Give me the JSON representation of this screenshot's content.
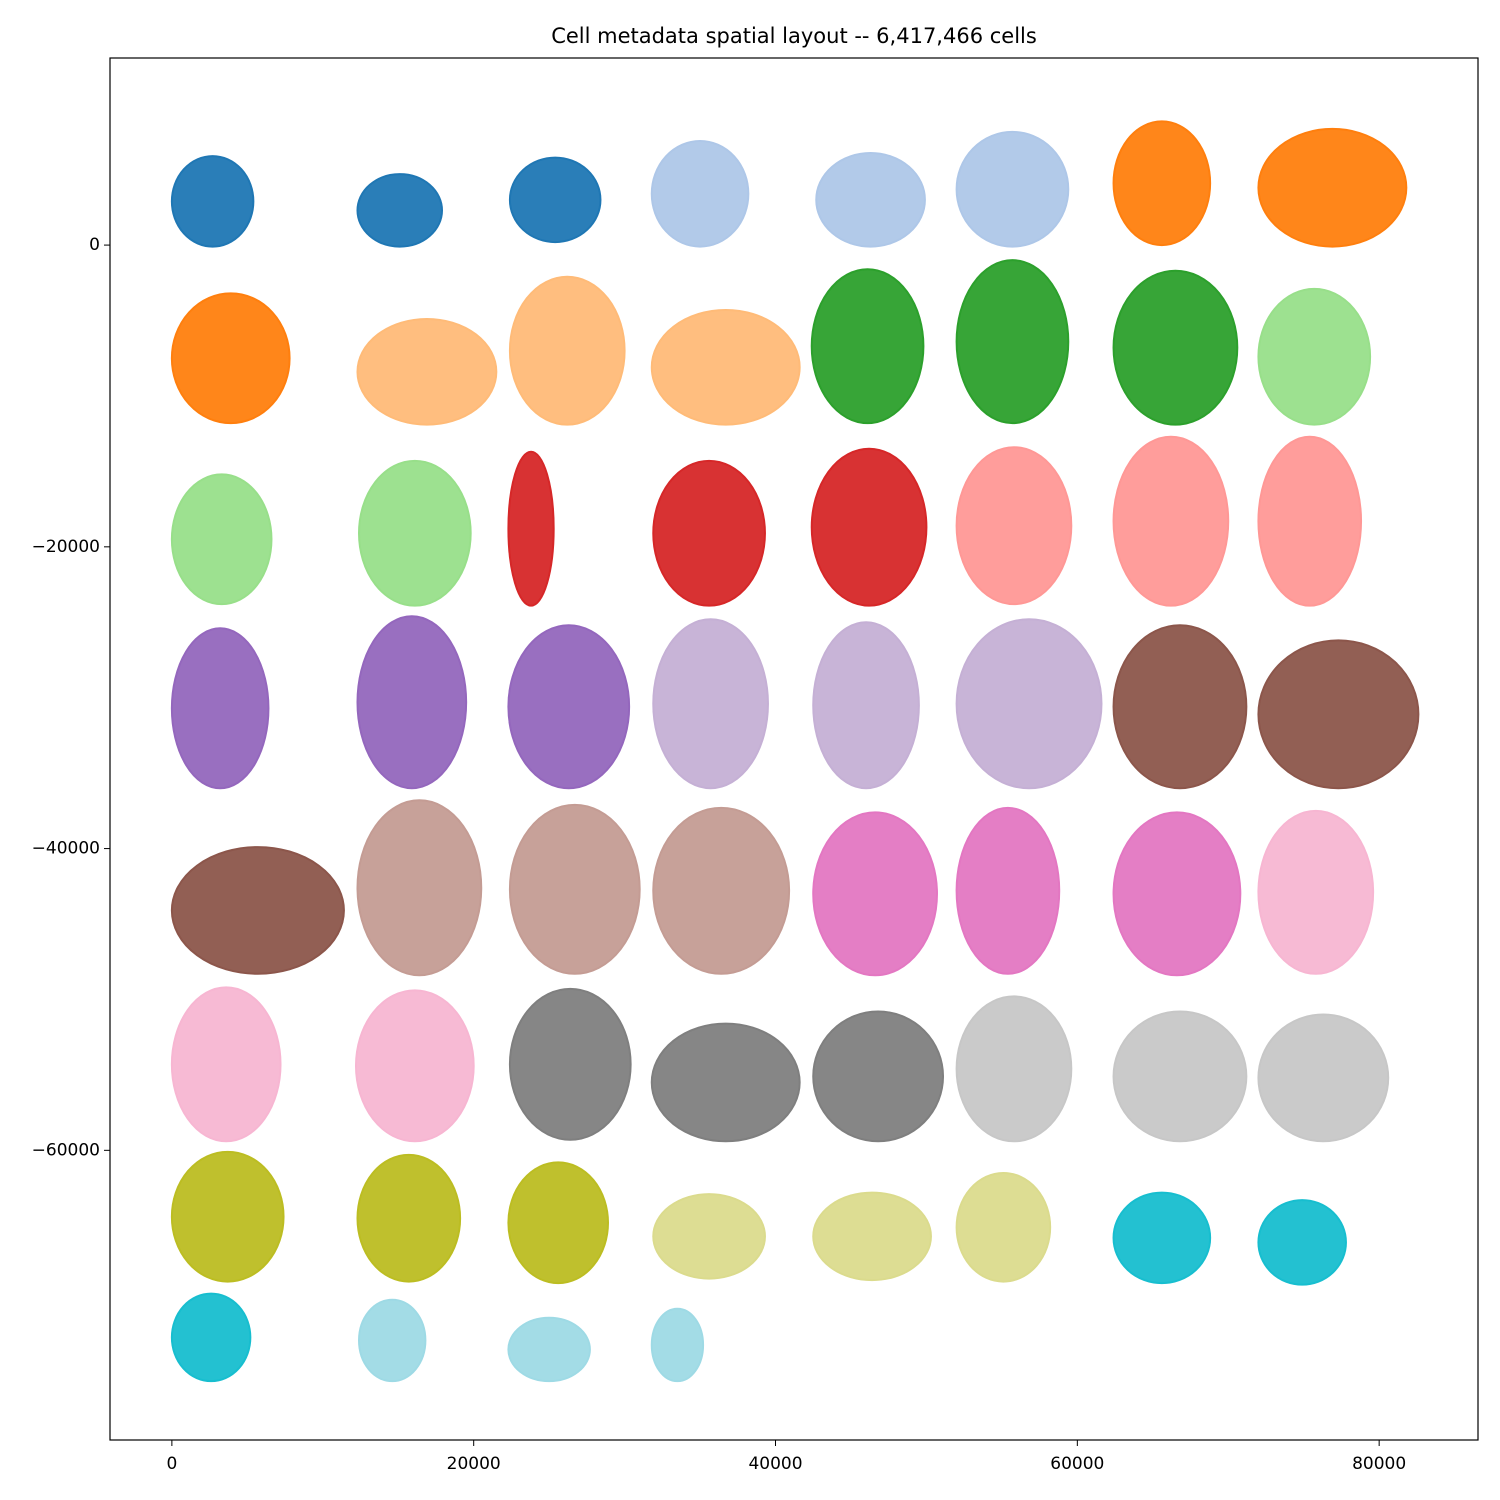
{
  "chart_data": {
    "type": "scatter",
    "title": "Cell metadata spatial layout -- 6,417,466 cells",
    "xlim": [
      -4100,
      86550
    ],
    "ylim": [
      -79200,
      12400
    ],
    "xticks": [
      0,
      20000,
      40000,
      60000,
      80000
    ],
    "yticks": [
      0,
      {
        "value": -20000,
        "label": "−20000"
      },
      {
        "value": -40000,
        "label": "−40000"
      },
      {
        "value": -60000,
        "label": "−60000"
      }
    ],
    "series": [
      {
        "color": "#1f77b4",
        "x": [
          2700,
          15100,
          25400
        ],
        "y": [
          2900,
          2300,
          3000
        ],
        "rx": [
          2700,
          2800,
          3000
        ],
        "ry": [
          3000,
          2400,
          2800
        ]
      },
      {
        "color": "#aec7e8",
        "x": [
          35000,
          46300,
          55700
        ],
        "y": [
          3400,
          3000,
          3700
        ],
        "rx": [
          3200,
          3600,
          3700
        ],
        "ry": [
          3500,
          3100,
          3800
        ]
      },
      {
        "color": "#ff7f0e",
        "x": [
          65600,
          76900,
          3900
        ],
        "y": [
          4100,
          3800,
          -7500
        ],
        "rx": [
          3200,
          4900,
          3900
        ],
        "ry": [
          4100,
          3900,
          4300
        ]
      },
      {
        "color": "#ffbb78",
        "x": [
          16900,
          26200,
          36700
        ],
        "y": [
          -8400,
          -7000,
          -8100
        ],
        "rx": [
          4600,
          3800,
          4900
        ],
        "ry": [
          3500,
          4900,
          3800
        ]
      },
      {
        "color": "#2ca02c",
        "x": [
          46100,
          55700,
          66500
        ],
        "y": [
          -6700,
          -6400,
          -6800
        ],
        "rx": [
          3700,
          3700,
          4100
        ],
        "ry": [
          5100,
          5400,
          5100
        ]
      },
      {
        "color": "#98df8a",
        "x": [
          75700,
          3300,
          16100
        ],
        "y": [
          -7400,
          -19500,
          -19100
        ],
        "rx": [
          3700,
          3300,
          3700
        ],
        "ry": [
          4500,
          4300,
          4800
        ]
      },
      {
        "color": "#d62728",
        "x": [
          23800,
          35600,
          46200
        ],
        "y": [
          -18800,
          -19100,
          -18700
        ],
        "rx": [
          1500,
          3700,
          3800
        ],
        "ry": [
          5100,
          4800,
          5200
        ]
      },
      {
        "color": "#ff9896",
        "x": [
          55800,
          66200,
          75400
        ],
        "y": [
          -18600,
          -18300,
          -18300
        ],
        "rx": [
          3800,
          3800,
          3400
        ],
        "ry": [
          5200,
          5600,
          5600
        ]
      },
      {
        "color": "#9467bd",
        "x": [
          3200,
          15900,
          26300
        ],
        "y": [
          -30700,
          -30300,
          -30600
        ],
        "rx": [
          3200,
          3600,
          4000
        ],
        "ry": [
          5300,
          5700,
          5400
        ]
      },
      {
        "color": "#c5b0d5",
        "x": [
          35700,
          46000,
          56800
        ],
        "y": [
          -30400,
          -30500,
          -30400
        ],
        "rx": [
          3800,
          3500,
          4800
        ],
        "ry": [
          5600,
          5500,
          5600
        ]
      },
      {
        "color": "#8c564b",
        "x": [
          66800,
          77300,
          5700
        ],
        "y": [
          -30600,
          -31100,
          -44100
        ],
        "rx": [
          4400,
          5300,
          5700
        ],
        "ry": [
          5400,
          4900,
          4200
        ]
      },
      {
        "color": "#c49c94",
        "x": [
          16400,
          26700,
          36400
        ],
        "y": [
          -42600,
          -42700,
          -42800
        ],
        "rx": [
          4100,
          4300,
          4500
        ],
        "ry": [
          5800,
          5600,
          5500
        ]
      },
      {
        "color": "#e377c2",
        "x": [
          46600,
          55400,
          66600
        ],
        "y": [
          -43000,
          -42800,
          -43000
        ],
        "rx": [
          4100,
          3400,
          4200
        ],
        "ry": [
          5400,
          5500,
          5400
        ]
      },
      {
        "color": "#f7b6d2",
        "x": [
          75800,
          3600,
          16100
        ],
        "y": [
          -42900,
          -54300,
          -54400
        ],
        "rx": [
          3800,
          3600,
          3900
        ],
        "ry": [
          5400,
          5100,
          5000
        ]
      },
      {
        "color": "#7f7f7f",
        "x": [
          26400,
          36700,
          46800
        ],
        "y": [
          -54300,
          -55500,
          -55100
        ],
        "rx": [
          4000,
          4900,
          4300
        ],
        "ry": [
          5000,
          3900,
          4300
        ]
      },
      {
        "color": "#c7c7c7",
        "x": [
          55800,
          66800,
          76300
        ],
        "y": [
          -54600,
          -55100,
          -55200
        ],
        "rx": [
          3800,
          4400,
          4300
        ],
        "ry": [
          4800,
          4300,
          4200
        ]
      },
      {
        "color": "#bcbd22",
        "x": [
          3700,
          15700,
          25600
        ],
        "y": [
          -64400,
          -64500,
          -64800
        ],
        "rx": [
          3700,
          3400,
          3300
        ],
        "ry": [
          4300,
          4200,
          4000
        ]
      },
      {
        "color": "#dbdb8d",
        "x": [
          35600,
          46400,
          55100
        ],
        "y": [
          -65700,
          -65700,
          -65100
        ],
        "rx": [
          3700,
          3900,
          3100
        ],
        "ry": [
          2800,
          2900,
          3600
        ]
      },
      {
        "color": "#17becf",
        "x": [
          65600,
          74900,
          2600
        ],
        "y": [
          -65800,
          -66100,
          -72400
        ],
        "rx": [
          3200,
          2900,
          2600
        ],
        "ry": [
          3000,
          2800,
          2900
        ]
      },
      {
        "color": "#9edae5",
        "x": [
          14600,
          25000,
          33500
        ],
        "y": [
          -72600,
          -73200,
          -72900
        ],
        "rx": [
          2200,
          2700,
          1700
        ],
        "ry": [
          2700,
          2100,
          2400
        ]
      }
    ]
  }
}
